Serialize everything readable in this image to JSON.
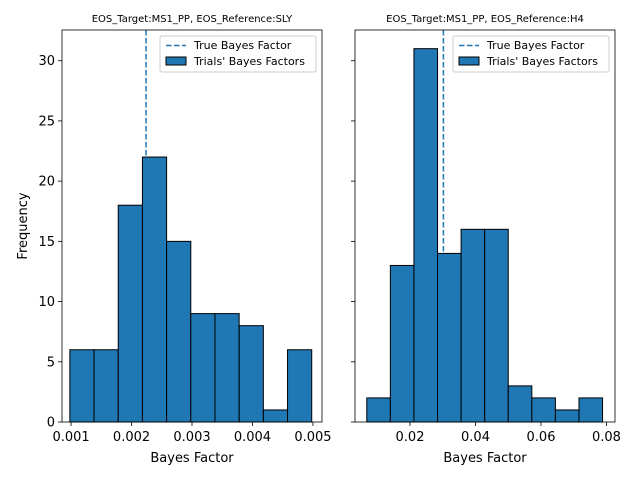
{
  "chart_data": [
    {
      "type": "bar",
      "title": "EOS_Target:MS1_PP, EOS_Reference:SLY",
      "xlabel": "Bayes Factor",
      "ylabel": "Frequency",
      "xlim": [
        0.00085,
        0.00515
      ],
      "ylim": [
        0,
        32.55
      ],
      "xticks": [
        0.001,
        0.002,
        0.003,
        0.004,
        0.005
      ],
      "xtick_labels": [
        "0.001",
        "0.002",
        "0.003",
        "0.004",
        "0.005"
      ],
      "yticks": [
        0,
        5,
        10,
        15,
        20,
        25,
        30
      ],
      "ytick_labels": [
        "0",
        "5",
        "10",
        "15",
        "20",
        "25",
        "30"
      ],
      "bin_edges": [
        0.00098,
        0.00138,
        0.00178,
        0.00218,
        0.00258,
        0.00298,
        0.00338,
        0.00378,
        0.00418,
        0.00458,
        0.00498
      ],
      "counts": [
        6,
        6,
        18,
        22,
        15,
        9,
        9,
        8,
        1,
        6
      ],
      "true_value": 0.00224,
      "bar_color": "#1f77b4",
      "legend": {
        "position": "upper right",
        "entries": [
          "True Bayes Factor",
          "Trials' Bayes Factors"
        ]
      }
    },
    {
      "type": "bar",
      "title": "EOS_Target:MS1_PP, EOS_Reference:H4",
      "xlabel": "Bayes Factor",
      "ylabel": "",
      "xlim": [
        0.0032,
        0.0826
      ],
      "ylim": [
        0,
        32.55
      ],
      "xticks": [
        0.02,
        0.04,
        0.06,
        0.08
      ],
      "xtick_labels": [
        "0.02",
        "0.04",
        "0.06",
        "0.08"
      ],
      "yticks": [
        0,
        5,
        10,
        15,
        20,
        25,
        30
      ],
      "ytick_labels": [],
      "bin_edges": [
        0.0068,
        0.014,
        0.0212,
        0.0284,
        0.0356,
        0.0428,
        0.05,
        0.0572,
        0.0644,
        0.0716,
        0.0788
      ],
      "counts": [
        2,
        13,
        31,
        14,
        16,
        16,
        3,
        2,
        1,
        2
      ],
      "true_value": 0.0302,
      "bar_color": "#1f77b4",
      "legend": {
        "position": "upper right",
        "entries": [
          "True Bayes Factor",
          "Trials' Bayes Factors"
        ]
      }
    }
  ]
}
